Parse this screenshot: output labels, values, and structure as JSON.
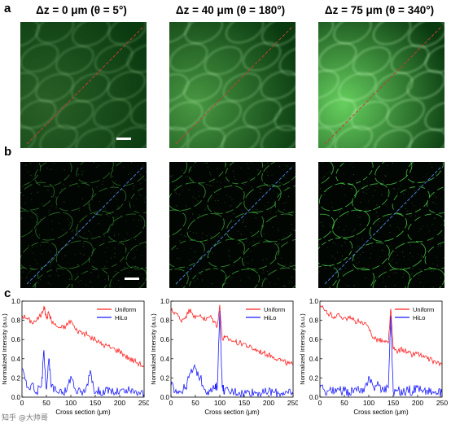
{
  "panels": {
    "a": "a",
    "b": "b",
    "c": "c"
  },
  "columns": [
    {
      "title": "Δz = 0 μm (θ = 5°)",
      "image_variant": "dim"
    },
    {
      "title": "Δz = 40 μm (θ = 180°)",
      "image_variant": "mid"
    },
    {
      "title": "Δz = 75 μm (θ = 340°)",
      "image_variant": "bright"
    }
  ],
  "colors": {
    "uniform_line": "#ff2020",
    "hilo_line": "#1a1aff",
    "cross_section_a": "#c04030",
    "cross_section_b": "#4a7ad0",
    "widefield_dark": "#0b2a0b",
    "widefield_bright": "#c8f0c0"
  },
  "watermark": "知乎 @大帅哥",
  "chart_data": [
    {
      "type": "line",
      "xlabel": "Cross section (μm)",
      "ylabel": "Normalized Intensity (a.u.)",
      "xlim": [
        0,
        250
      ],
      "ylim": [
        0,
        1.0
      ],
      "xticks": [
        0,
        50,
        100,
        150,
        200,
        250
      ],
      "yticks": [
        0.0,
        0.2,
        0.4,
        0.6,
        0.8,
        1.0
      ],
      "legend_position": "top-right",
      "series": [
        {
          "name": "Uniform",
          "color": "#ff2020",
          "x": [
            0,
            10,
            20,
            30,
            40,
            45,
            50,
            55,
            60,
            70,
            80,
            90,
            100,
            110,
            120,
            130,
            140,
            150,
            160,
            170,
            180,
            190,
            200,
            210,
            220,
            230,
            240,
            250
          ],
          "y": [
            0.85,
            0.82,
            0.78,
            0.8,
            0.86,
            0.95,
            0.82,
            0.88,
            0.8,
            0.74,
            0.72,
            0.74,
            0.8,
            0.7,
            0.68,
            0.66,
            0.62,
            0.6,
            0.56,
            0.54,
            0.52,
            0.5,
            0.48,
            0.44,
            0.4,
            0.38,
            0.35,
            0.32
          ]
        },
        {
          "name": "HiLo",
          "color": "#1a1aff",
          "x": [
            0,
            10,
            20,
            30,
            40,
            45,
            50,
            55,
            60,
            70,
            80,
            90,
            100,
            110,
            120,
            130,
            140,
            150,
            160,
            170,
            180,
            190,
            200,
            210,
            220,
            230,
            240,
            250
          ],
          "y": [
            0.3,
            0.1,
            0.14,
            0.05,
            0.12,
            0.49,
            0.08,
            0.4,
            0.1,
            0.06,
            0.08,
            0.05,
            0.22,
            0.07,
            0.05,
            0.06,
            0.28,
            0.04,
            0.07,
            0.05,
            0.08,
            0.04,
            0.06,
            0.05,
            0.07,
            0.04,
            0.05,
            0.03
          ]
        }
      ]
    },
    {
      "type": "line",
      "xlabel": "Cross section (μm)",
      "ylabel": "Normalized Intensity (a.u.)",
      "xlim": [
        0,
        250
      ],
      "ylim": [
        0,
        1.0
      ],
      "xticks": [
        0,
        50,
        100,
        150,
        200,
        250
      ],
      "yticks": [
        0.0,
        0.2,
        0.4,
        0.6,
        0.8,
        1.0
      ],
      "legend_position": "top-right",
      "series": [
        {
          "name": "Uniform",
          "color": "#ff2020",
          "x": [
            0,
            10,
            20,
            30,
            40,
            50,
            60,
            70,
            80,
            90,
            95,
            100,
            105,
            110,
            120,
            130,
            140,
            150,
            160,
            170,
            180,
            190,
            200,
            210,
            220,
            230,
            240,
            250
          ],
          "y": [
            0.9,
            0.88,
            0.8,
            0.84,
            0.92,
            0.82,
            0.86,
            0.8,
            0.84,
            0.78,
            0.74,
            0.96,
            0.6,
            0.62,
            0.6,
            0.58,
            0.56,
            0.56,
            0.52,
            0.5,
            0.48,
            0.46,
            0.44,
            0.42,
            0.4,
            0.37,
            0.35,
            0.34
          ]
        },
        {
          "name": "HiLo",
          "color": "#1a1aff",
          "x": [
            0,
            10,
            20,
            30,
            40,
            50,
            60,
            70,
            80,
            90,
            95,
            100,
            105,
            110,
            120,
            130,
            140,
            150,
            160,
            170,
            180,
            190,
            200,
            210,
            220,
            230,
            240,
            250
          ],
          "y": [
            0.12,
            0.08,
            0.06,
            0.1,
            0.25,
            0.3,
            0.2,
            0.08,
            0.06,
            0.09,
            0.12,
            0.9,
            0.1,
            0.07,
            0.05,
            0.06,
            0.05,
            0.04,
            0.06,
            0.05,
            0.05,
            0.04,
            0.06,
            0.05,
            0.04,
            0.05,
            0.04,
            0.03
          ]
        }
      ]
    },
    {
      "type": "line",
      "xlabel": "Cross section (μm)",
      "ylabel": "Normalized Intensity (a.u.)",
      "xlim": [
        0,
        250
      ],
      "ylim": [
        0,
        1.0
      ],
      "xticks": [
        0,
        50,
        100,
        150,
        200,
        250
      ],
      "yticks": [
        0.0,
        0.2,
        0.4,
        0.6,
        0.8,
        1.0
      ],
      "legend_position": "top-right",
      "series": [
        {
          "name": "Uniform",
          "color": "#ff2020",
          "x": [
            0,
            10,
            20,
            30,
            40,
            50,
            60,
            70,
            80,
            90,
            100,
            110,
            120,
            130,
            140,
            145,
            150,
            160,
            170,
            180,
            190,
            200,
            210,
            220,
            230,
            240,
            250
          ],
          "y": [
            0.95,
            0.9,
            0.86,
            0.84,
            0.85,
            0.83,
            0.82,
            0.8,
            0.78,
            0.76,
            0.72,
            0.62,
            0.6,
            0.58,
            0.56,
            0.92,
            0.5,
            0.48,
            0.5,
            0.46,
            0.44,
            0.46,
            0.42,
            0.4,
            0.38,
            0.36,
            0.34
          ]
        },
        {
          "name": "HiLo",
          "color": "#1a1aff",
          "x": [
            0,
            10,
            20,
            30,
            40,
            50,
            60,
            70,
            80,
            90,
            100,
            110,
            120,
            130,
            140,
            145,
            150,
            160,
            170,
            180,
            190,
            200,
            210,
            220,
            230,
            240,
            250
          ],
          "y": [
            0.1,
            0.06,
            0.08,
            0.05,
            0.07,
            0.06,
            0.05,
            0.08,
            0.06,
            0.05,
            0.22,
            0.1,
            0.12,
            0.08,
            0.1,
            0.85,
            0.06,
            0.07,
            0.05,
            0.08,
            0.06,
            0.12,
            0.05,
            0.07,
            0.05,
            0.04,
            0.04
          ]
        }
      ]
    }
  ]
}
